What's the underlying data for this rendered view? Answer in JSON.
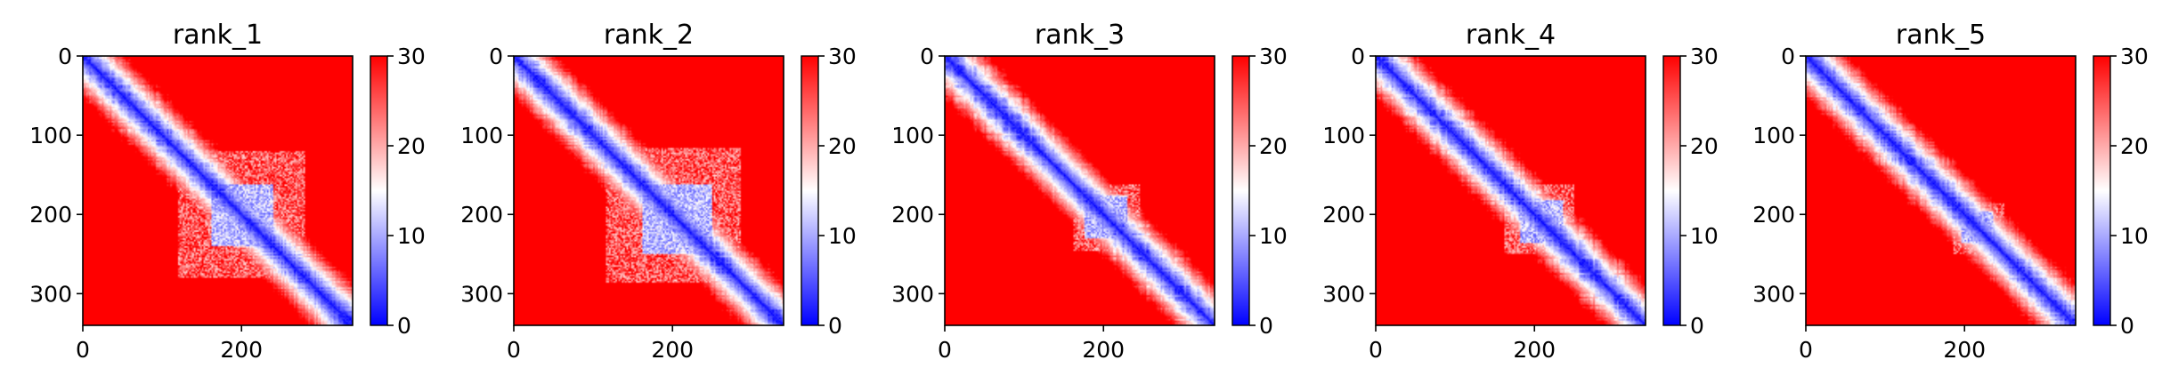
{
  "chart_data": [
    {
      "type": "heatmap",
      "title": "rank_1",
      "xlim": [
        0,
        340
      ],
      "ylim": [
        340,
        0
      ],
      "x_ticks": [
        0,
        200
      ],
      "y_ticks": [
        0,
        100,
        200,
        300
      ],
      "x_tick_labels": [
        "0",
        "200"
      ],
      "y_tick_labels": [
        "0",
        "100",
        "200",
        "300"
      ],
      "colorbar": {
        "min": 0,
        "max": 30,
        "ticks": [
          0,
          10,
          20,
          30
        ],
        "tick_labels": [
          "0",
          "10",
          "20",
          "30"
        ],
        "colormap": "bwr"
      },
      "domain_block": [
        120,
        280
      ],
      "core_block": [
        160,
        240
      ]
    },
    {
      "type": "heatmap",
      "title": "rank_2",
      "xlim": [
        0,
        340
      ],
      "ylim": [
        340,
        0
      ],
      "x_ticks": [
        0,
        200
      ],
      "y_ticks": [
        0,
        100,
        200,
        300
      ],
      "x_tick_labels": [
        "0",
        "200"
      ],
      "y_tick_labels": [
        "0",
        "100",
        "200",
        "300"
      ],
      "colorbar": {
        "min": 0,
        "max": 30,
        "ticks": [
          0,
          10,
          20,
          30
        ],
        "tick_labels": [
          "0",
          "10",
          "20",
          "30"
        ],
        "colormap": "bwr"
      },
      "domain_block": [
        115,
        285
      ],
      "core_block": [
        160,
        250
      ]
    },
    {
      "type": "heatmap",
      "title": "rank_3",
      "xlim": [
        0,
        340
      ],
      "ylim": [
        340,
        0
      ],
      "x_ticks": [
        0,
        200
      ],
      "y_ticks": [
        0,
        100,
        200,
        300
      ],
      "x_tick_labels": [
        "0",
        "200"
      ],
      "y_tick_labels": [
        "0",
        "100",
        "200",
        "300"
      ],
      "colorbar": {
        "min": 0,
        "max": 30,
        "ticks": [
          0,
          10,
          20,
          30
        ],
        "tick_labels": [
          "0",
          "10",
          "20",
          "30"
        ],
        "colormap": "bwr"
      },
      "domain_block": [
        160,
        245
      ],
      "core_block": [
        175,
        230
      ]
    },
    {
      "type": "heatmap",
      "title": "rank_4",
      "xlim": [
        0,
        340
      ],
      "ylim": [
        340,
        0
      ],
      "x_ticks": [
        0,
        200
      ],
      "y_ticks": [
        0,
        100,
        200,
        300
      ],
      "x_tick_labels": [
        "0",
        "200"
      ],
      "y_tick_labels": [
        "0",
        "100",
        "200",
        "300"
      ],
      "colorbar": {
        "min": 0,
        "max": 30,
        "ticks": [
          0,
          10,
          20,
          30
        ],
        "tick_labels": [
          "0",
          "10",
          "20",
          "30"
        ],
        "colormap": "bwr"
      },
      "domain_block": [
        160,
        250
      ],
      "core_block": [
        180,
        235
      ]
    },
    {
      "type": "heatmap",
      "title": "rank_5",
      "xlim": [
        0,
        340
      ],
      "ylim": [
        340,
        0
      ],
      "x_ticks": [
        0,
        200
      ],
      "y_ticks": [
        0,
        100,
        200,
        300
      ],
      "x_tick_labels": [
        "0",
        "200"
      ],
      "y_tick_labels": [
        "0",
        "100",
        "200",
        "300"
      ],
      "colorbar": {
        "min": 0,
        "max": 30,
        "ticks": [
          0,
          10,
          20,
          30
        ],
        "tick_labels": [
          "0",
          "10",
          "20",
          "30"
        ],
        "colormap": "bwr"
      },
      "domain_block": [
        185,
        250
      ],
      "core_block": [
        195,
        235
      ]
    }
  ],
  "colors": {
    "low": "#0000ff",
    "mid": "#ffffff",
    "high": "#ff0000"
  }
}
